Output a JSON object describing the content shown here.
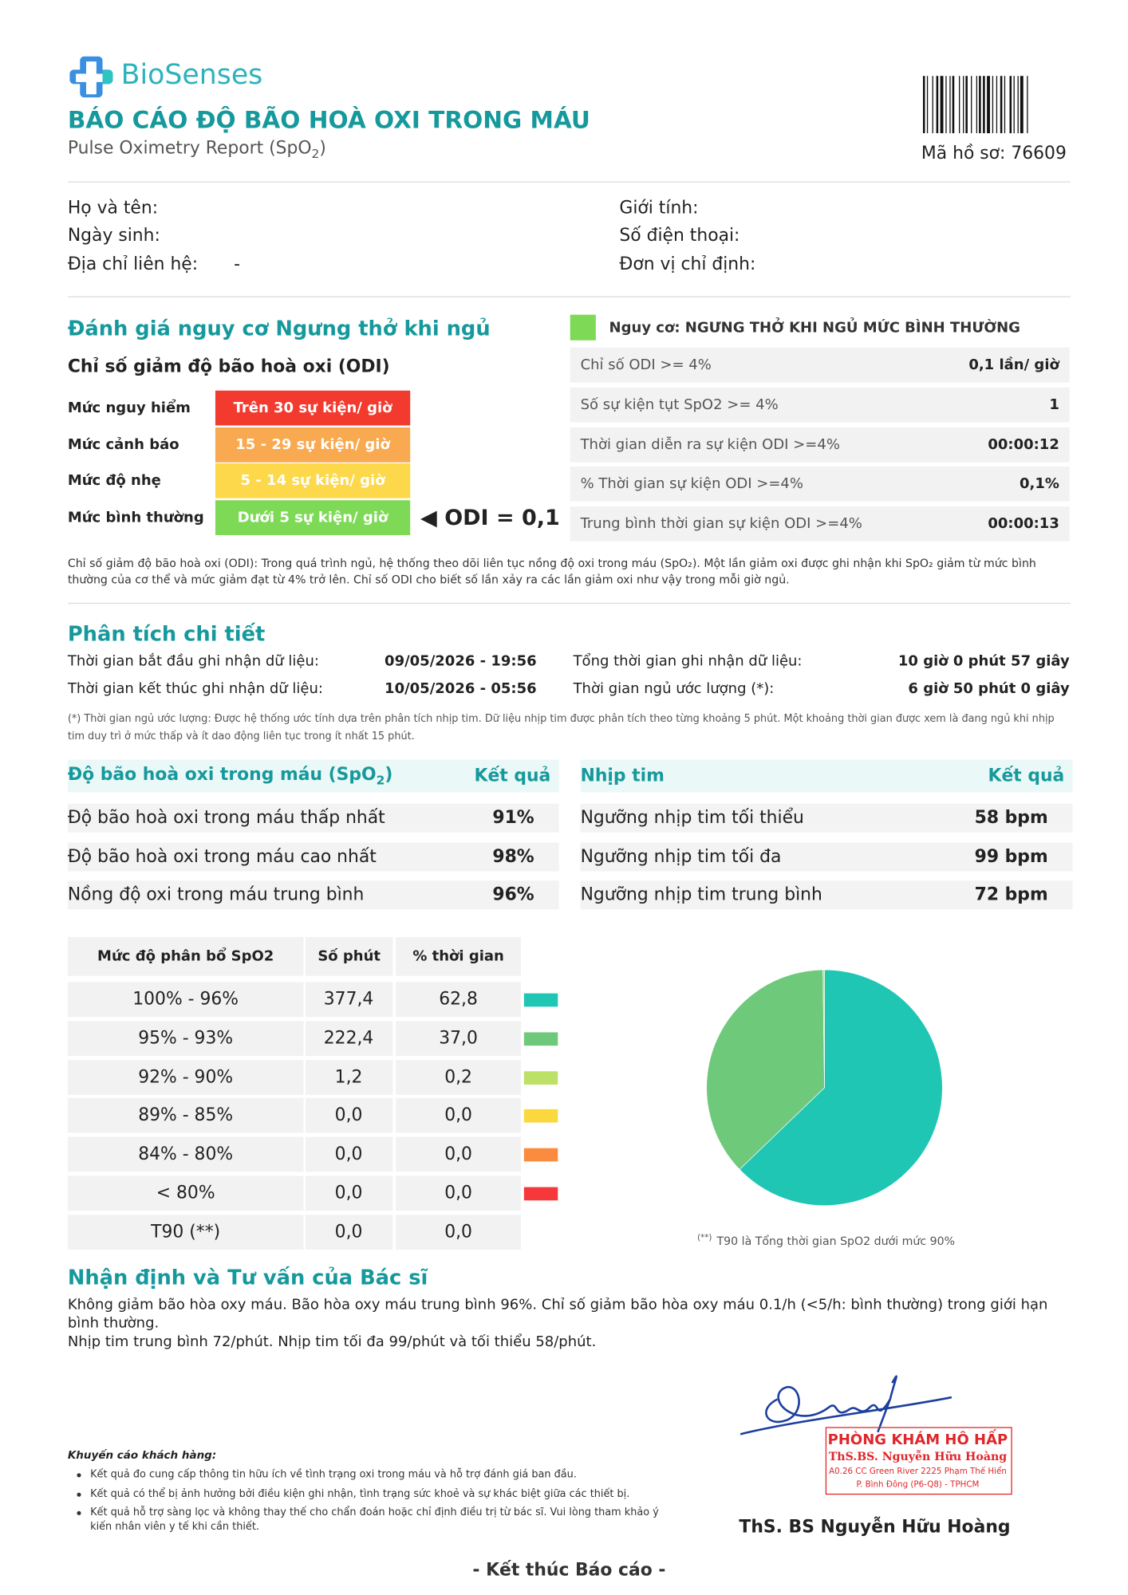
{
  "header": {
    "brand": "BioSenses",
    "title": "BÁO CÁO ĐỘ BÃO HOÀ OXI TRONG MÁU",
    "subtitle": [
      "Pulse Oximetry Report (SpO",
      "2",
      ")"
    ],
    "record": "Mã hồ sơ: 76609"
  },
  "patient": {
    "name_label": "Họ và tên:",
    "dob_label": "Ngày sinh:",
    "address_label": "Địa chỉ liên hệ:",
    "address": "-",
    "gender_label": "Giới tính:",
    "phone_label": "Số điện thoại:",
    "unit_label": "Đơn vị chỉ định:"
  },
  "risk": {
    "heading": "Đánh giá nguy cơ Ngưng thở khi ngủ",
    "odi_title": "Chỉ số giảm độ bão hoà oxi (ODI)",
    "levels": [
      {
        "label": "Mức nguy hiểm",
        "range": "Trên 30 sự kiện/ giờ",
        "color": "#f23a2f"
      },
      {
        "label": "Mức cảnh báo",
        "range": "15 - 29 sự kiện/ giờ",
        "color": "#f9a94f"
      },
      {
        "label": "Mức độ nhẹ",
        "range": "5 - 14 sự kiện/ giờ",
        "color": "#fcd84a"
      },
      {
        "label": "Mức bình thường",
        "range": "Dưới 5 sự kiện/ giờ",
        "color": "#7ed957"
      }
    ],
    "odi_marker": "◀ ODI = 0,1",
    "status_color": "#7ed957",
    "status": "Nguy cơ: NGƯNG THỞ KHI NGỦ MỨC BÌNH THƯỜNG",
    "metrics": [
      {
        "label": "Chỉ số ODI >= 4%",
        "value": "0,1 lần/ giờ"
      },
      {
        "label": "Số sự kiện tụt SpO2 >= 4%",
        "value": "1"
      },
      {
        "label": "Thời gian diễn ra sự kiện ODI >=4%",
        "value": "00:00:12"
      },
      {
        "label": "% Thời gian sự kiện ODI >=4%",
        "value": "0,1%"
      },
      {
        "label": "Trung bình thời gian sự kiện ODI >=4%",
        "value": "00:00:13"
      }
    ],
    "note": "Chỉ số giảm độ bão hoà oxi (ODI): Trong quá trình ngủ, hệ thống theo dõi liên tục nồng độ oxi trong máu (SpO₂). Một lần giảm oxi được ghi nhận khi SpO₂ giảm từ mức bình thường của cơ thể và mức giảm đạt từ 4% trở lên. Chỉ số ODI cho biết số lần xảy ra các lần giảm oxi như vậy trong mỗi giờ ngủ."
  },
  "analysis": {
    "heading": "Phân tích chi tiết",
    "start_label": "Thời gian bắt đầu ghi nhận dữ liệu:",
    "start": "09/05/2026 - 19:56",
    "end_label": "Thời gian kết thúc ghi nhận dữ liệu:",
    "end": "10/05/2026 - 05:56",
    "total_label": "Tổng thời gian ghi nhận dữ liệu:",
    "total": "10 giờ 0 phút 57 giây",
    "sleep_label": "Thời gian ngủ ước lượng (*):",
    "sleep": "6 giờ 50 phút 0 giây",
    "footnote": "(*) Thời gian ngủ ước lượng: Được hệ thống ước tính dựa trên phân tích nhịp tim. Dữ liệu nhịp tim được phân tích theo từng khoảng 5 phút. Một khoảng thời gian được xem là đang ngủ khi nhịp tim duy trì ở mức thấp và ít dao động liên tục trong ít nhất 15 phút."
  },
  "spo2": {
    "header": [
      "Độ bão hoà oxi trong máu (SpO",
      "2",
      ")"
    ],
    "result_header": "Kết quả",
    "rows": [
      {
        "label": "Độ bão hoà oxi trong máu thấp nhất",
        "value": "91%"
      },
      {
        "label": "Độ bão hoà oxi trong máu cao nhất",
        "value": "98%"
      },
      {
        "label": "Nồng độ oxi trong máu trung bình",
        "value": "96%"
      }
    ]
  },
  "heart_rate": {
    "header": "Nhịp tim",
    "result_header": "Kết quả",
    "rows": [
      {
        "label": "Ngưỡng nhịp tim tối thiểu",
        "value": "58 bpm"
      },
      {
        "label": "Ngưỡng nhịp tim tối đa",
        "value": "99 bpm"
      },
      {
        "label": "Ngưỡng nhịp tim trung bình",
        "value": "72 bpm"
      }
    ]
  },
  "distribution": {
    "type": "pie",
    "headers": [
      "Mức độ phân bổ SpO2",
      "Số phút",
      "% thời gian"
    ],
    "categories": [
      "100% - 96%",
      "95% - 93%",
      "92% - 90%",
      "89% - 85%",
      "84% - 80%",
      "< 80%"
    ],
    "minutes": [
      "377,4",
      "222,4",
      "1,2",
      "0,0",
      "0,0",
      "0,0"
    ],
    "values": [
      62.8,
      37.0,
      0.2,
      0,
      0,
      0
    ],
    "value_labels": [
      "62,8",
      "37,0",
      "0,2",
      "0,0",
      "0,0",
      "0,0"
    ],
    "colors": [
      "#1fc6b4",
      "#6ec97a",
      "#bde067",
      "#fbd83e",
      "#fb8c3f",
      "#f5383a"
    ],
    "t90": {
      "label": "T90 (**)",
      "minutes": "0,0",
      "percent": "0,0"
    },
    "caption_mark": "(**)",
    "caption": "T90 là Tổng thời gian SpO2 dưới mức 90%"
  },
  "doctor": {
    "heading": "Nhận định và Tư vấn của Bác sĩ",
    "text": [
      "Không giảm bão hòa oxy máu. Bão hòa oxy máu trung bình 96%. Chỉ số giảm bão hòa oxy máu 0.1/h (<5/h: bình thường) trong giới hạn bình thường.",
      "Nhịp tim trung bình 72/phút. Nhịp tim tối đa 99/phút và tối thiểu 58/phút."
    ],
    "signature_name": "ThS. BS Nguyễn Hữu Hoàng"
  },
  "stamp": [
    "PHÒNG KHÁM HÔ HẤP",
    "ThS.BS. Nguyễn Hữu Hoàng",
    "A0.26 CC Green River 2225 Phạm Thế Hiển",
    "P. Bình Đông (P6-Q8) - TPHCM"
  ],
  "advice": {
    "title": "Khuyến cáo khách hàng:",
    "items": [
      "Kết quả đo cung cấp thông tin hữu ích về tình trạng oxi trong máu và hỗ trợ đánh giá ban đầu.",
      "Kết quả có thể bị ảnh hưởng bởi điều kiện ghi nhận, tình trạng sức khoẻ và sự khác biệt giữa các thiết bị.",
      "Kết quả hỗ trợ sàng lọc và không thay thế cho chẩn đoán hoặc chỉ định điều trị từ bác sĩ. Vui lòng tham khảo ý kiến nhân viên y tế khi cần thiết."
    ]
  },
  "footer": "- Kết thúc Báo cáo -"
}
